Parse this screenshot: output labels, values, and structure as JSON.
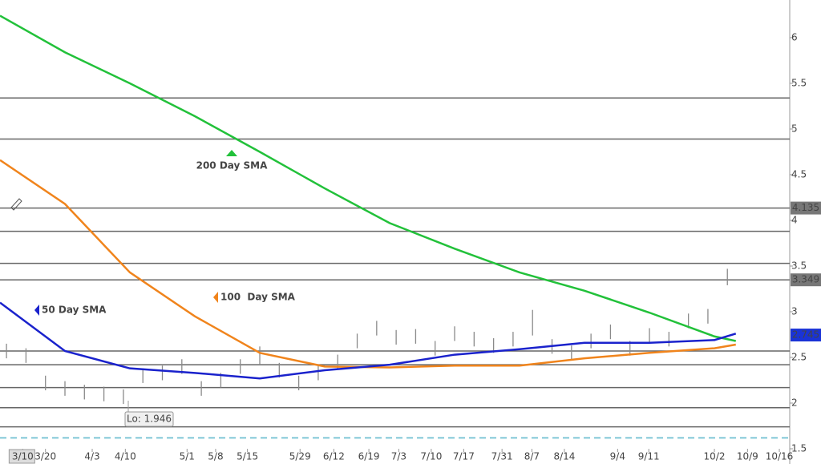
{
  "chart_data": {
    "type": "line",
    "xlim": [
      0,
      121.6
    ],
    "ylim": [
      1.5,
      6.412
    ],
    "xticks": [
      {
        "value": 3.5,
        "label": "3/10"
      },
      {
        "value": 7,
        "label": "3/20"
      },
      {
        "value": 14.2,
        "label": "4/3"
      },
      {
        "value": 19.3,
        "label": "4/10"
      },
      {
        "value": 28.8,
        "label": "5/1"
      },
      {
        "value": 33.2,
        "label": "5/8"
      },
      {
        "value": 38.1,
        "label": "5/15"
      },
      {
        "value": 46.2,
        "label": "5/29"
      },
      {
        "value": 51.4,
        "label": "6/12"
      },
      {
        "value": 56.8,
        "label": "6/19"
      },
      {
        "value": 61.4,
        "label": "7/3"
      },
      {
        "value": 66.4,
        "label": "7/10"
      },
      {
        "value": 71.4,
        "label": "7/17"
      },
      {
        "value": 77.3,
        "label": "7/31"
      },
      {
        "value": 81.9,
        "label": "8/7"
      },
      {
        "value": 86.9,
        "label": "8/14"
      },
      {
        "value": 95.1,
        "label": "9/4"
      },
      {
        "value": 99.9,
        "label": "9/11"
      },
      {
        "value": 110,
        "label": "10/2"
      },
      {
        "value": 115.1,
        "label": "10/9"
      },
      {
        "value": 120,
        "label": "10/16"
      }
    ],
    "yticks": [
      1.5,
      2,
      2.5,
      3,
      3.5,
      4,
      4.5,
      5,
      5.5,
      6
    ],
    "levels": [
      5.34,
      4.89,
      4.135,
      3.88,
      3.53,
      3.349,
      2.57,
      2.42,
      2.17,
      1.95,
      1.74
    ],
    "level_color": "#666666",
    "dashed_level": 1.62,
    "dashed_color": "#7fc6d6",
    "tags": [
      {
        "value": 4.135,
        "color": "#777777"
      },
      {
        "value": 3.349,
        "color": "#777777"
      },
      {
        "value": 2.745,
        "color": "#1a33d6"
      }
    ],
    "x": [
      0,
      10,
      20,
      30,
      40,
      50,
      60,
      70,
      80,
      90,
      100,
      110,
      113.3
    ],
    "series": [
      {
        "name": "200 Day SMA",
        "color": "#22c13a",
        "values": [
          6.24,
          5.84,
          5.5,
          5.14,
          4.75,
          4.35,
          3.97,
          3.69,
          3.43,
          3.23,
          2.99,
          2.73,
          2.68
        ]
      },
      {
        "name": "100  Day SMA",
        "color": "#f0841c",
        "values": [
          4.66,
          4.18,
          3.43,
          2.95,
          2.55,
          2.4,
          2.39,
          2.41,
          2.41,
          2.49,
          2.55,
          2.6,
          2.64
        ]
      },
      {
        "name": "50 Day SMA",
        "color": "#1a22cc",
        "values": [
          3.1,
          2.57,
          2.38,
          2.33,
          2.27,
          2.36,
          2.42,
          2.53,
          2.59,
          2.66,
          2.66,
          2.69,
          2.76
        ]
      }
    ],
    "price": {
      "color": "#8a8a8a",
      "x": [
        1,
        4,
        7,
        10,
        13,
        16,
        19,
        22,
        25,
        28,
        31,
        34,
        37,
        40,
        43,
        46,
        49,
        52,
        55,
        58,
        61,
        64,
        67,
        70,
        73,
        76,
        79,
        82,
        85,
        88,
        91,
        94,
        97,
        100,
        103,
        106,
        109,
        112
      ],
      "high": [
        2.65,
        2.6,
        2.3,
        2.24,
        2.2,
        2.18,
        2.15,
        2.38,
        2.41,
        2.48,
        2.24,
        2.33,
        2.48,
        2.62,
        2.44,
        2.3,
        2.41,
        2.53,
        2.76,
        2.9,
        2.8,
        2.81,
        2.68,
        2.84,
        2.78,
        2.71,
        2.78,
        3.02,
        2.7,
        2.63,
        2.76,
        2.86,
        2.68,
        2.82,
        2.78,
        2.98,
        3.03,
        3.47
      ],
      "low": [
        2.49,
        2.44,
        2.14,
        2.08,
        2.04,
        2.02,
        1.99,
        2.22,
        2.25,
        2.32,
        2.08,
        2.17,
        2.32,
        2.42,
        2.28,
        2.14,
        2.25,
        2.37,
        2.6,
        2.74,
        2.64,
        2.65,
        2.52,
        2.68,
        2.62,
        2.55,
        2.62,
        2.74,
        2.54,
        2.47,
        2.6,
        2.7,
        2.52,
        2.66,
        2.62,
        2.82,
        2.87,
        3.29
      ]
    },
    "annotations": [
      {
        "text": "Lo: 1.946"
      }
    ]
  }
}
